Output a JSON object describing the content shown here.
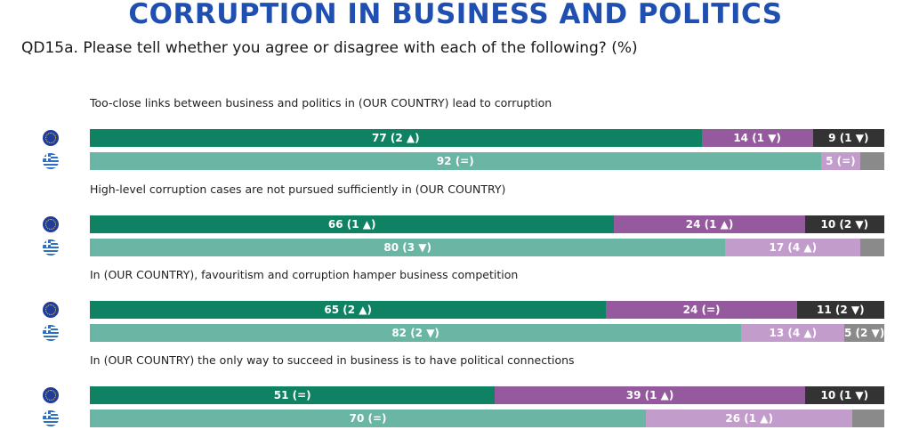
{
  "header": {
    "title": "CORRUPTION IN BUSINESS AND POLITICS",
    "question": "QD15a. Please tell whether you agree or disagree with each of the following? (%)"
  },
  "colors": {
    "eu_agree": "#0e8263",
    "eu_disagree": "#955a9e",
    "eu_dk": "#333333",
    "gr_agree": "#6bb5a5",
    "gr_disagree": "#c29ccb",
    "gr_dk": "#8a8a8a",
    "title": "#1f4fb0"
  },
  "icons": {
    "eu": "eu-flag-icon",
    "gr": "greece-flag-icon"
  },
  "chart_data": {
    "type": "bar",
    "stacked": true,
    "orientation": "horizontal",
    "series_keys": [
      "agree",
      "disagree",
      "dont_know"
    ],
    "items": [
      {
        "label": "Too-close links between business and politics in (OUR COUNTRY) lead to corruption",
        "eu": {
          "values": [
            77,
            14,
            9
          ],
          "labels": [
            "77 (2 ▲)",
            "14 (1 ▼)",
            "9 (1 ▼)"
          ]
        },
        "gr": {
          "values": [
            92,
            5,
            3
          ],
          "labels": [
            "92 (=)",
            "5 (=)",
            ""
          ]
        }
      },
      {
        "label": "High-level corruption cases are not pursued sufficiently in (OUR COUNTRY)",
        "eu": {
          "values": [
            66,
            24,
            10
          ],
          "labels": [
            "66 (1 ▲)",
            "24 (1 ▲)",
            "10 (2 ▼)"
          ]
        },
        "gr": {
          "values": [
            80,
            17,
            3
          ],
          "labels": [
            "80 (3 ▼)",
            "17 (4 ▲)",
            ""
          ]
        }
      },
      {
        "label": "In (OUR COUNTRY), favouritism and corruption hamper business competition",
        "eu": {
          "values": [
            65,
            24,
            11
          ],
          "labels": [
            "65 (2 ▲)",
            "24 (=)",
            "11 (2 ▼)"
          ]
        },
        "gr": {
          "values": [
            82,
            13,
            5
          ],
          "labels": [
            "82 (2 ▼)",
            "13 (4 ▲)",
            "5 (2 ▼)"
          ]
        }
      },
      {
        "label": "In (OUR COUNTRY) the only way to succeed in business is to have political connections",
        "eu": {
          "values": [
            51,
            39,
            10
          ],
          "labels": [
            "51 (=)",
            "39 (1 ▲)",
            "10 (1 ▼)"
          ]
        },
        "gr": {
          "values": [
            70,
            26,
            4
          ],
          "labels": [
            "70 (=)",
            "26 (1 ▲)",
            ""
          ]
        }
      }
    ]
  }
}
